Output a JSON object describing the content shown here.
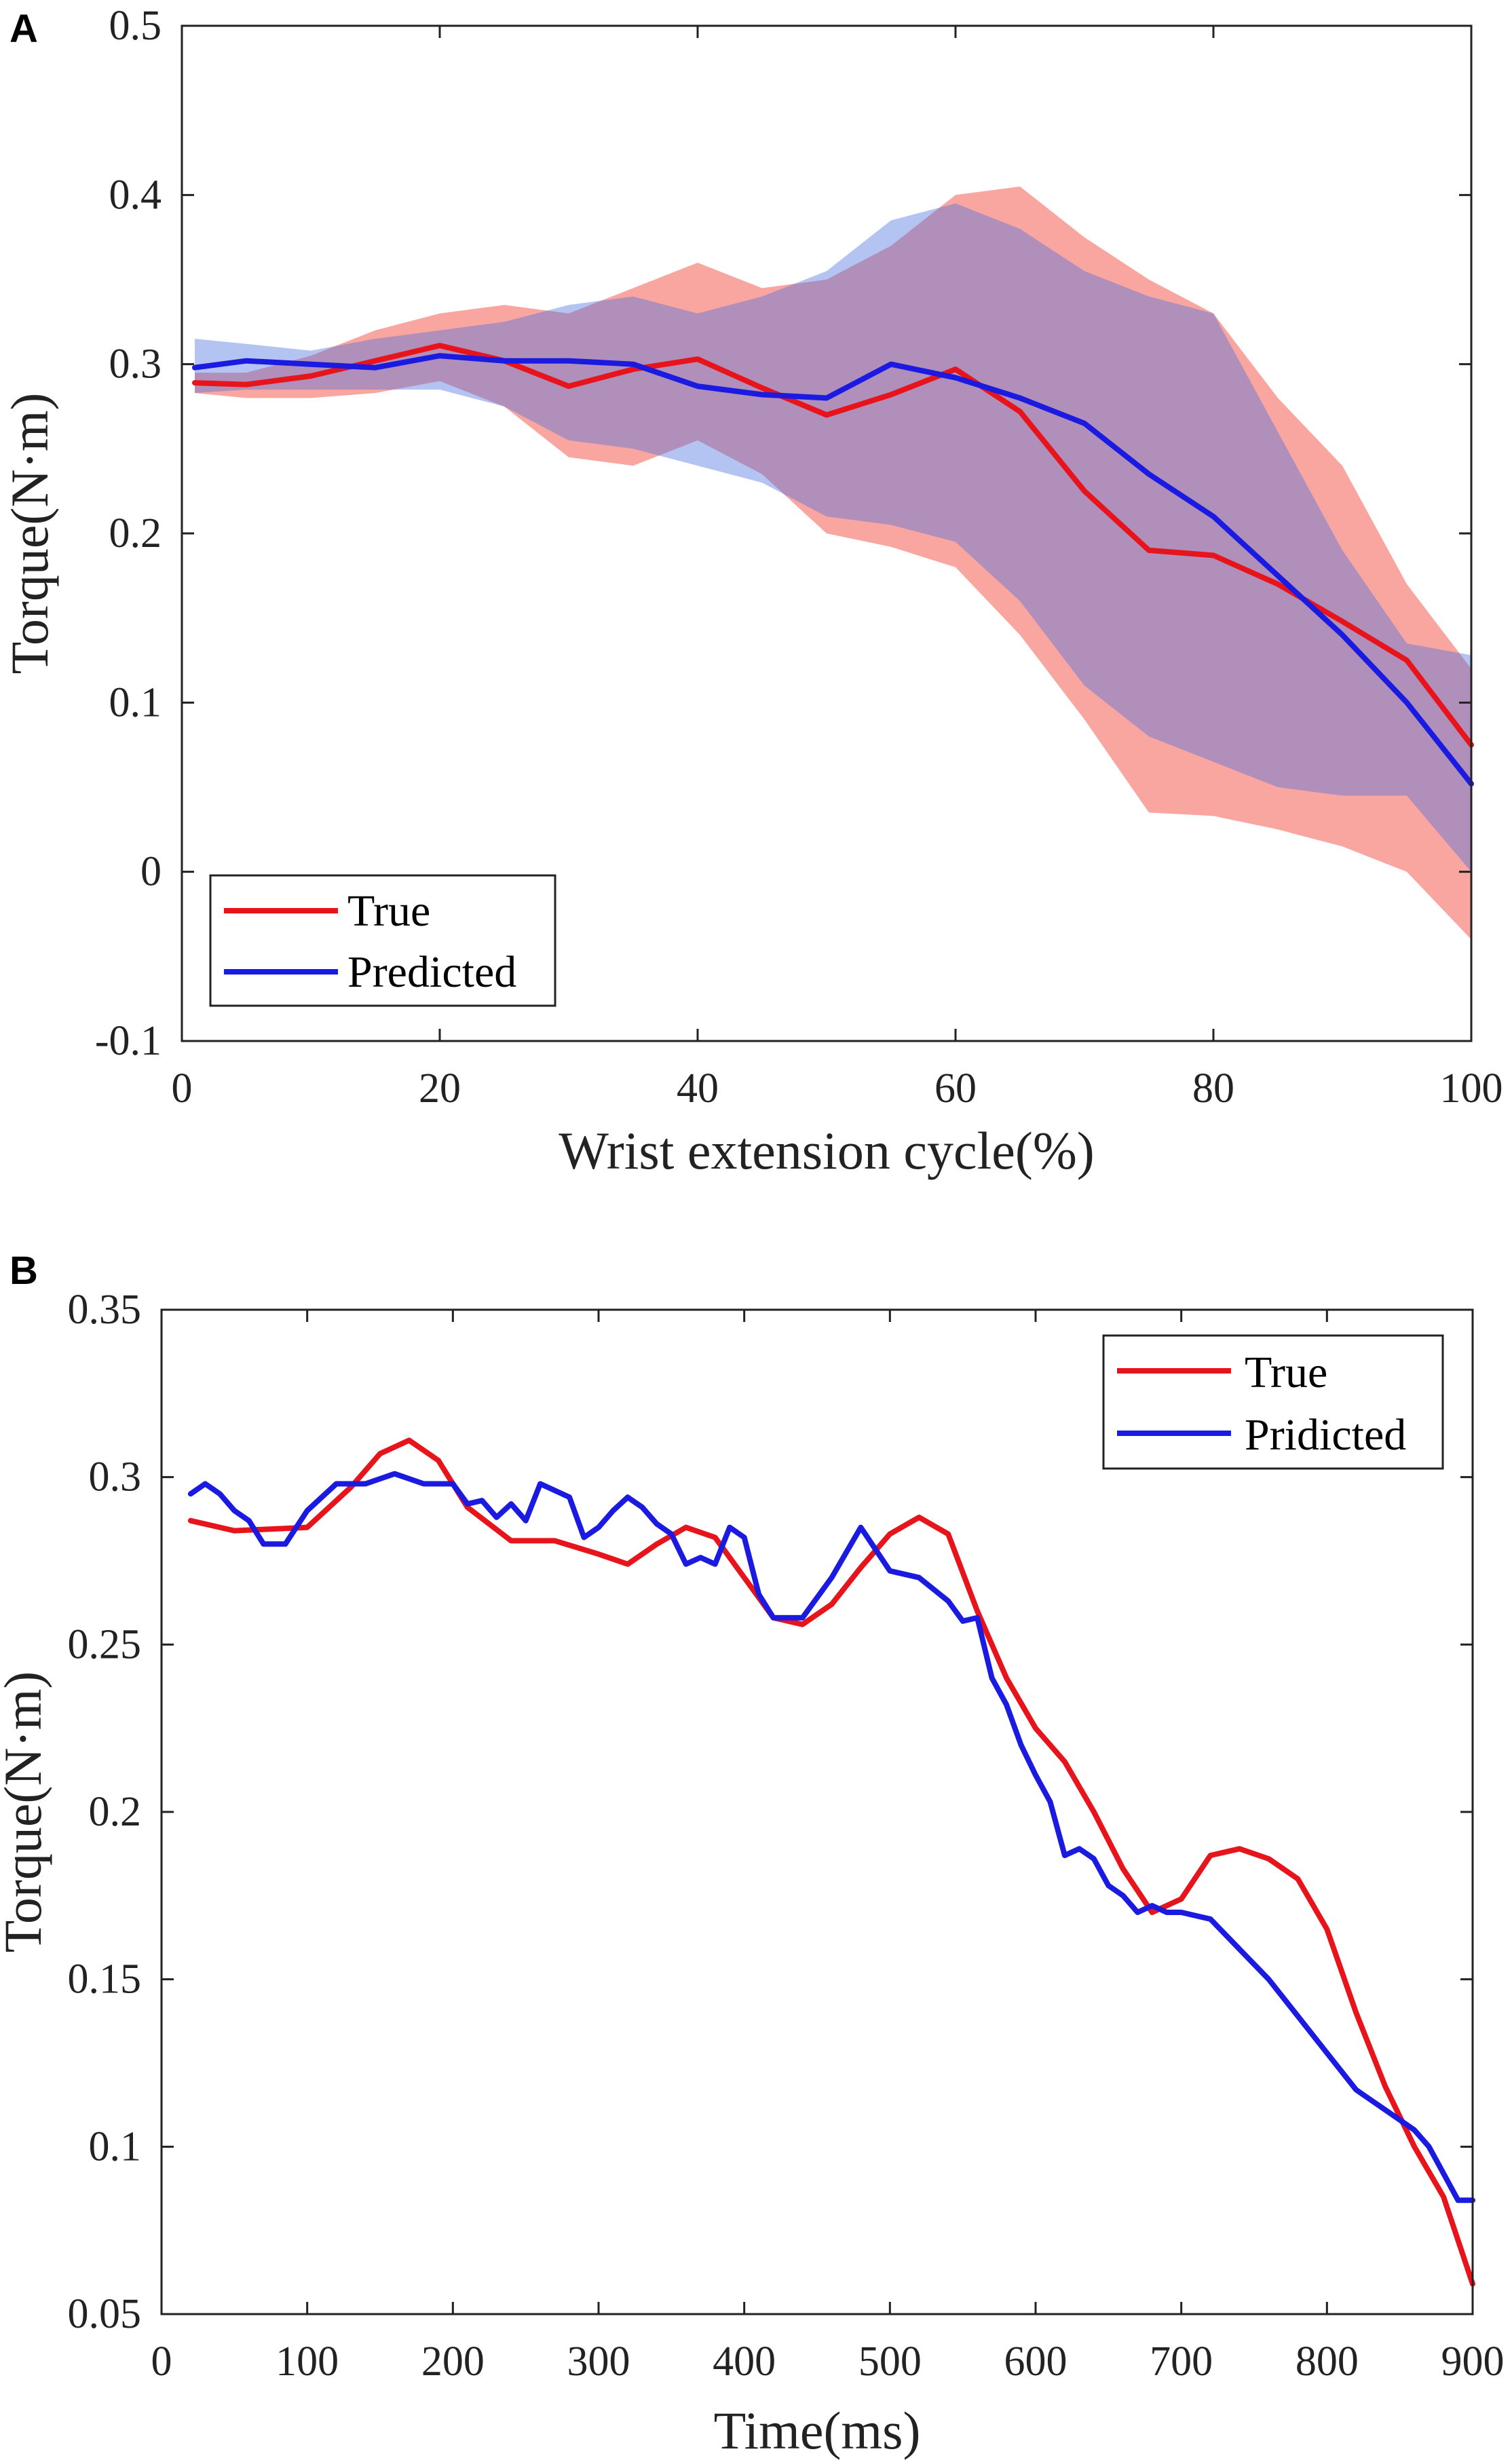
{
  "chart_data": [
    {
      "panel": "A",
      "type": "line",
      "title": "",
      "xlabel": "Wrist extension cycle(%)",
      "ylabel": "Torque(N·m)",
      "xlim": [
        0,
        100
      ],
      "ylim": [
        -0.1,
        0.5
      ],
      "xticks": [
        0,
        20,
        40,
        60,
        80,
        100
      ],
      "xtick_labels": [
        "0",
        "20",
        "40",
        "60",
        "80",
        "100"
      ],
      "yticks": [
        -0.1,
        0,
        0.1,
        0.2,
        0.3,
        0.4,
        0.5
      ],
      "ytick_labels": [
        "-0.1",
        "0",
        "0.1",
        "0.2",
        "0.3",
        "0.4",
        "0.5"
      ],
      "grid": false,
      "legend": {
        "position": "bottom-left",
        "entries": [
          "True",
          "Predicted"
        ]
      },
      "x": [
        1,
        5,
        10,
        15,
        20,
        25,
        30,
        35,
        40,
        45,
        50,
        55,
        60,
        65,
        70,
        75,
        80,
        85,
        90,
        95,
        100
      ],
      "series": [
        {
          "name": "True",
          "color": "#e8141c",
          "values": [
            0.289,
            0.288,
            0.293,
            0.302,
            0.311,
            0.302,
            0.287,
            0.297,
            0.303,
            0.286,
            0.27,
            0.282,
            0.297,
            0.272,
            0.225,
            0.19,
            0.187,
            0.17,
            0.148,
            0.125,
            0.075
          ],
          "band_upper": [
            0.295,
            0.295,
            0.305,
            0.32,
            0.33,
            0.335,
            0.33,
            0.345,
            0.36,
            0.345,
            0.35,
            0.37,
            0.4,
            0.405,
            0.375,
            0.35,
            0.33,
            0.28,
            0.24,
            0.17,
            0.12
          ],
          "band_lower": [
            0.283,
            0.28,
            0.28,
            0.283,
            0.29,
            0.275,
            0.245,
            0.24,
            0.255,
            0.235,
            0.2,
            0.192,
            0.18,
            0.14,
            0.09,
            0.035,
            0.033,
            0.025,
            0.015,
            0.0,
            -0.04
          ]
        },
        {
          "name": "Predicted",
          "color": "#1a1ae0",
          "values": [
            0.298,
            0.302,
            0.3,
            0.298,
            0.305,
            0.302,
            0.302,
            0.3,
            0.287,
            0.282,
            0.28,
            0.3,
            0.292,
            0.28,
            0.265,
            0.235,
            0.21,
            0.175,
            0.14,
            0.1,
            0.052
          ],
          "band_upper": [
            0.315,
            0.312,
            0.308,
            0.315,
            0.32,
            0.325,
            0.335,
            0.34,
            0.33,
            0.34,
            0.355,
            0.385,
            0.395,
            0.38,
            0.355,
            0.34,
            0.33,
            0.26,
            0.19,
            0.135,
            0.128
          ],
          "band_lower": [
            0.283,
            0.285,
            0.285,
            0.285,
            0.285,
            0.275,
            0.255,
            0.25,
            0.24,
            0.23,
            0.21,
            0.205,
            0.195,
            0.16,
            0.11,
            0.08,
            0.065,
            0.05,
            0.045,
            0.045,
            0.0
          ]
        }
      ]
    },
    {
      "panel": "B",
      "type": "line",
      "title": "",
      "xlabel": "Time(ms)",
      "ylabel": "Torque(N·m)",
      "xlim": [
        0,
        900
      ],
      "ylim": [
        0.05,
        0.35
      ],
      "xticks": [
        0,
        100,
        200,
        300,
        400,
        500,
        600,
        700,
        800,
        900
      ],
      "xtick_labels": [
        "0",
        "100",
        "200",
        "300",
        "400",
        "500",
        "600",
        "700",
        "800",
        "900"
      ],
      "yticks": [
        0.05,
        0.1,
        0.15,
        0.2,
        0.25,
        0.3,
        0.35
      ],
      "ytick_labels": [
        "0.05",
        "0.1",
        "0.15",
        "0.2",
        "0.25",
        "0.3",
        "0.35"
      ],
      "grid": false,
      "legend": {
        "position": "top-right",
        "entries": [
          "True",
          "Pridicted"
        ]
      },
      "series": [
        {
          "name": "True",
          "color": "#e8141c",
          "x": [
            20,
            50,
            100,
            130,
            150,
            170,
            190,
            210,
            240,
            270,
            300,
            320,
            340,
            360,
            380,
            400,
            420,
            440,
            460,
            480,
            500,
            520,
            540,
            560,
            580,
            600,
            620,
            640,
            660,
            680,
            700,
            720,
            740,
            760,
            780,
            800,
            820,
            840,
            860,
            880,
            900
          ],
          "values": [
            0.287,
            0.284,
            0.285,
            0.297,
            0.307,
            0.311,
            0.305,
            0.291,
            0.281,
            0.281,
            0.277,
            0.274,
            0.28,
            0.285,
            0.282,
            0.27,
            0.258,
            0.256,
            0.262,
            0.273,
            0.283,
            0.288,
            0.283,
            0.26,
            0.24,
            0.225,
            0.215,
            0.2,
            0.183,
            0.17,
            0.174,
            0.187,
            0.189,
            0.186,
            0.18,
            0.165,
            0.14,
            0.118,
            0.1,
            0.085,
            0.059
          ]
        },
        {
          "name": "Pridicted",
          "color": "#1a1ae0",
          "x": [
            20,
            30,
            40,
            50,
            60,
            70,
            85,
            100,
            120,
            140,
            160,
            180,
            200,
            210,
            220,
            230,
            240,
            250,
            260,
            270,
            280,
            290,
            300,
            310,
            320,
            330,
            340,
            350,
            360,
            370,
            380,
            390,
            400,
            410,
            420,
            440,
            460,
            480,
            500,
            520,
            540,
            550,
            560,
            570,
            580,
            590,
            600,
            610,
            620,
            630,
            640,
            650,
            660,
            670,
            680,
            690,
            700,
            720,
            740,
            760,
            780,
            800,
            820,
            840,
            860,
            870,
            880,
            890,
            900
          ],
          "values": [
            0.295,
            0.298,
            0.295,
            0.29,
            0.287,
            0.28,
            0.28,
            0.29,
            0.298,
            0.298,
            0.301,
            0.298,
            0.298,
            0.292,
            0.293,
            0.288,
            0.292,
            0.287,
            0.298,
            0.296,
            0.294,
            0.282,
            0.285,
            0.29,
            0.294,
            0.291,
            0.286,
            0.283,
            0.274,
            0.276,
            0.274,
            0.285,
            0.282,
            0.265,
            0.258,
            0.258,
            0.27,
            0.285,
            0.272,
            0.27,
            0.263,
            0.257,
            0.258,
            0.24,
            0.232,
            0.22,
            0.211,
            0.203,
            0.187,
            0.189,
            0.186,
            0.178,
            0.175,
            0.17,
            0.172,
            0.17,
            0.17,
            0.168,
            0.159,
            0.15,
            0.139,
            0.128,
            0.117,
            0.111,
            0.105,
            0.1,
            0.092,
            0.084,
            0.084
          ]
        }
      ]
    }
  ]
}
